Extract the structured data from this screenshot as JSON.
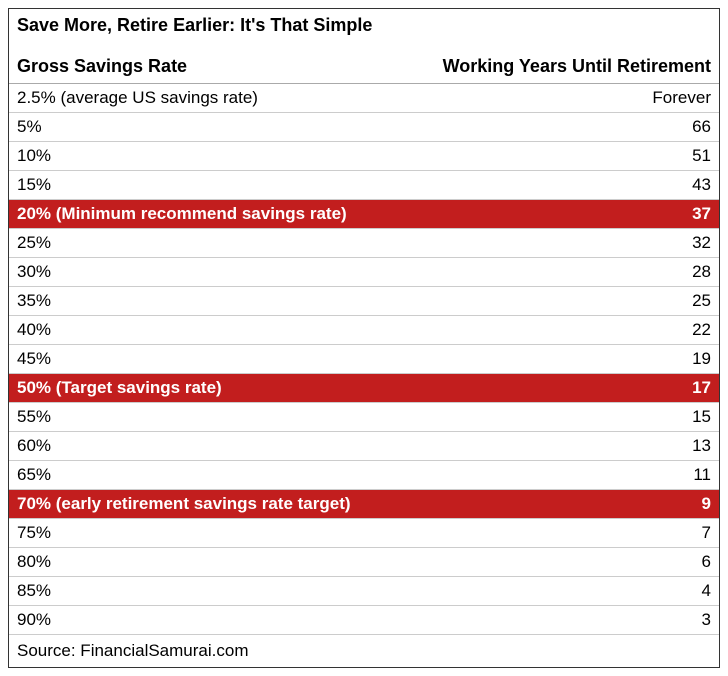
{
  "title": "Save More, Retire Earlier: It's That Simple",
  "headers": {
    "left": "Gross Savings Rate",
    "right": "Working Years Until Retirement"
  },
  "highlight_color": "#c21e1e",
  "highlight_text_color": "#ffffff",
  "text_color": "#000000",
  "background_color": "#ffffff",
  "border_color": "#cccccc",
  "font_size": 17,
  "title_font_size": 18,
  "rows": [
    {
      "rate": "2.5% (average US savings rate)",
      "years": "Forever",
      "highlighted": false
    },
    {
      "rate": "5%",
      "years": "66",
      "highlighted": false
    },
    {
      "rate": "10%",
      "years": "51",
      "highlighted": false
    },
    {
      "rate": "15%",
      "years": "43",
      "highlighted": false
    },
    {
      "rate": "20% (Minimum recommend savings rate)",
      "years": "37",
      "highlighted": true
    },
    {
      "rate": "25%",
      "years": "32",
      "highlighted": false
    },
    {
      "rate": "30%",
      "years": "28",
      "highlighted": false
    },
    {
      "rate": "35%",
      "years": "25",
      "highlighted": false
    },
    {
      "rate": "40%",
      "years": "22",
      "highlighted": false
    },
    {
      "rate": "45%",
      "years": "19",
      "highlighted": false
    },
    {
      "rate": "50% (Target savings rate)",
      "years": "17",
      "highlighted": true
    },
    {
      "rate": "55%",
      "years": "15",
      "highlighted": false
    },
    {
      "rate": "60%",
      "years": "13",
      "highlighted": false
    },
    {
      "rate": "65%",
      "years": "11",
      "highlighted": false
    },
    {
      "rate": "70% (early retirement savings rate target)",
      "years": "9",
      "highlighted": true
    },
    {
      "rate": "75%",
      "years": "7",
      "highlighted": false
    },
    {
      "rate": "80%",
      "years": "6",
      "highlighted": false
    },
    {
      "rate": "85%",
      "years": "4",
      "highlighted": false
    },
    {
      "rate": "90%",
      "years": "3",
      "highlighted": false
    }
  ],
  "source": "Source: FinancialSamurai.com"
}
